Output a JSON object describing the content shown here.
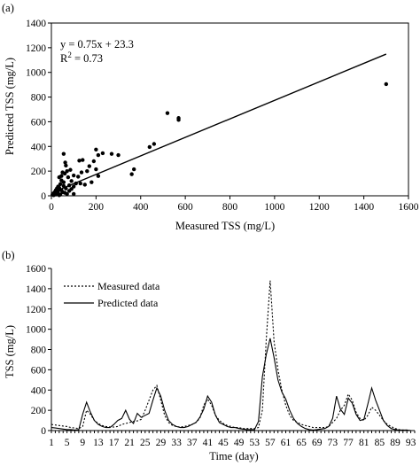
{
  "chart_data": [
    {
      "panel": "(a)",
      "type": "scatter",
      "xlabel": "Measured TSS (mg/L)",
      "ylabel": "Predicted TSS (mg/L)",
      "xlim": [
        0,
        1600
      ],
      "ylim": [
        0,
        1400
      ],
      "xticks": [
        0,
        200,
        400,
        600,
        800,
        1000,
        1200,
        1400,
        1600
      ],
      "yticks": [
        0,
        200,
        400,
        600,
        800,
        1000,
        1200,
        1400
      ],
      "equation": "y = 0.75x + 23.3",
      "r2_label": "R",
      "r2_exp": "2",
      "r2_value": " = 0.73",
      "fit": {
        "slope": 0.75,
        "intercept": 23.3,
        "x_range": [
          0,
          1500
        ]
      },
      "points": [
        [
          1500,
          905
        ],
        [
          520,
          670
        ],
        [
          570,
          630
        ],
        [
          570,
          615
        ],
        [
          460,
          420
        ],
        [
          440,
          395
        ],
        [
          370,
          215
        ],
        [
          360,
          175
        ],
        [
          300,
          330
        ],
        [
          270,
          340
        ],
        [
          230,
          345
        ],
        [
          200,
          375
        ],
        [
          210,
          330
        ],
        [
          190,
          280
        ],
        [
          170,
          240
        ],
        [
          200,
          215
        ],
        [
          210,
          160
        ],
        [
          160,
          200
        ],
        [
          140,
          290
        ],
        [
          125,
          285
        ],
        [
          135,
          190
        ],
        [
          120,
          155
        ],
        [
          100,
          165
        ],
        [
          90,
          120
        ],
        [
          110,
          100
        ],
        [
          100,
          75
        ],
        [
          80,
          85
        ],
        [
          70,
          200
        ],
        [
          60,
          180
        ],
        [
          50,
          190
        ],
        [
          55,
          340
        ],
        [
          65,
          245
        ],
        [
          75,
          150
        ],
        [
          45,
          125
        ],
        [
          40,
          95
        ],
        [
          55,
          80
        ],
        [
          65,
          60
        ],
        [
          35,
          65
        ],
        [
          30,
          40
        ],
        [
          45,
          45
        ],
        [
          25,
          20
        ],
        [
          20,
          10
        ],
        [
          15,
          30
        ],
        [
          40,
          10
        ],
        [
          60,
          25
        ],
        [
          70,
          15
        ],
        [
          35,
          5
        ],
        [
          10,
          5
        ],
        [
          20,
          45
        ],
        [
          50,
          30
        ],
        [
          30,
          75
        ],
        [
          80,
          40
        ],
        [
          90,
          55
        ],
        [
          100,
          15
        ],
        [
          130,
          100
        ],
        [
          150,
          90
        ],
        [
          180,
          110
        ],
        [
          15,
          15
        ],
        [
          5,
          10
        ],
        [
          25,
          60
        ],
        [
          55,
          110
        ],
        [
          85,
          210
        ],
        [
          45,
          160
        ],
        [
          35,
          150
        ],
        [
          62,
          270
        ],
        [
          28,
          28
        ]
      ]
    },
    {
      "panel": "(b)",
      "type": "line",
      "xlabel": "Time (day)",
      "ylabel": "TSS (mg/L)",
      "ylim": [
        0,
        1600
      ],
      "yticks": [
        0,
        200,
        400,
        600,
        800,
        1000,
        1200,
        1400,
        1600
      ],
      "xlim": [
        1,
        94
      ],
      "xticks": [
        1,
        5,
        9,
        13,
        17,
        21,
        25,
        29,
        33,
        37,
        41,
        45,
        49,
        53,
        57,
        61,
        65,
        69,
        73,
        77,
        81,
        85,
        89,
        93
      ],
      "x": [
        1,
        2,
        3,
        4,
        5,
        6,
        7,
        8,
        9,
        10,
        11,
        12,
        13,
        14,
        15,
        16,
        17,
        18,
        19,
        20,
        21,
        22,
        23,
        24,
        25,
        26,
        27,
        28,
        29,
        30,
        31,
        32,
        33,
        34,
        35,
        36,
        37,
        38,
        39,
        40,
        41,
        42,
        43,
        44,
        45,
        46,
        47,
        48,
        49,
        50,
        51,
        52,
        53,
        54,
        55,
        56,
        57,
        58,
        59,
        60,
        61,
        62,
        63,
        64,
        65,
        66,
        67,
        68,
        69,
        70,
        71,
        72,
        73,
        74,
        75,
        76,
        77,
        78,
        79,
        80,
        81,
        82,
        83,
        84,
        85,
        86,
        87,
        88,
        89,
        90,
        91,
        92,
        93,
        94
      ],
      "series": [
        {
          "name": "Measured data",
          "style": "dotted",
          "values": [
            60,
            55,
            50,
            45,
            40,
            30,
            25,
            20,
            40,
            200,
            160,
            100,
            70,
            50,
            40,
            35,
            35,
            40,
            60,
            70,
            80,
            90,
            95,
            110,
            200,
            300,
            400,
            445,
            300,
            150,
            80,
            50,
            40,
            35,
            40,
            50,
            60,
            80,
            120,
            250,
            310,
            250,
            150,
            100,
            70,
            50,
            40,
            30,
            30,
            20,
            20,
            20,
            20,
            30,
            200,
            900,
            1480,
            880,
            600,
            400,
            250,
            150,
            100,
            80,
            60,
            50,
            40,
            30,
            30,
            30,
            30,
            40,
            80,
            120,
            200,
            250,
            360,
            300,
            180,
            120,
            100,
            150,
            230,
            200,
            150,
            100,
            60,
            40,
            20,
            10,
            5,
            5,
            0,
            0
          ]
        },
        {
          "name": "Predicted data",
          "style": "solid",
          "values": [
            30,
            25,
            20,
            15,
            10,
            10,
            5,
            10,
            160,
            280,
            180,
            100,
            60,
            40,
            30,
            30,
            60,
            100,
            120,
            200,
            110,
            70,
            170,
            130,
            150,
            170,
            300,
            420,
            340,
            200,
            100,
            60,
            40,
            30,
            30,
            40,
            60,
            80,
            130,
            210,
            340,
            280,
            150,
            80,
            60,
            40,
            30,
            30,
            20,
            15,
            10,
            10,
            10,
            90,
            530,
            750,
            910,
            720,
            500,
            380,
            310,
            200,
            120,
            70,
            40,
            20,
            10,
            5,
            10,
            15,
            20,
            40,
            120,
            340,
            210,
            160,
            320,
            270,
            160,
            100,
            110,
            260,
            420,
            300,
            200,
            100,
            50,
            20,
            10,
            5,
            5,
            5,
            0,
            0
          ]
        }
      ]
    }
  ]
}
